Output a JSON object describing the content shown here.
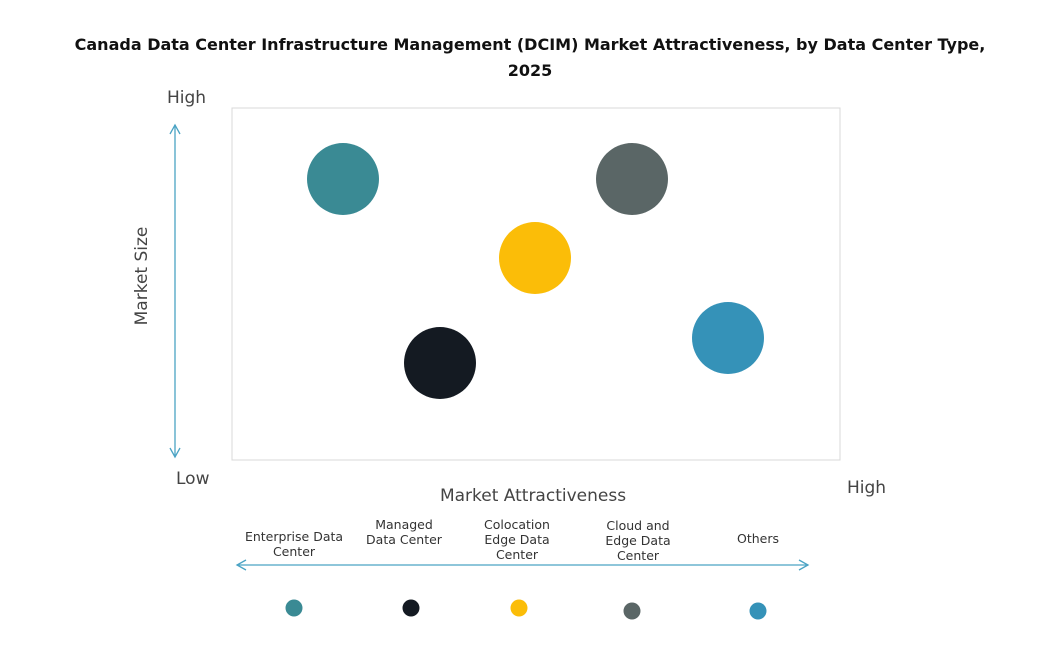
{
  "title": "Canada Data Center Infrastructure  Management (DCIM) Market Attractiveness,  by Data Center Type, 2025",
  "y_axis": {
    "label": "Market Size",
    "high": "High",
    "low": "Low"
  },
  "x_axis": {
    "label": "Market Attractiveness",
    "high": "High"
  },
  "arrow_color": "#4aa3c4",
  "legend": [
    {
      "label": "Enterprise Data Center",
      "color": "#3a8a94"
    },
    {
      "label": "Managed Data Center",
      "color": "#141a22"
    },
    {
      "label": "Colocation Edge Data Center",
      "color": "#fbbd08"
    },
    {
      "label": "Cloud and Edge Data Center",
      "color": "#5a6666"
    },
    {
      "label": "Others",
      "color": "#3592b8"
    }
  ]
}
